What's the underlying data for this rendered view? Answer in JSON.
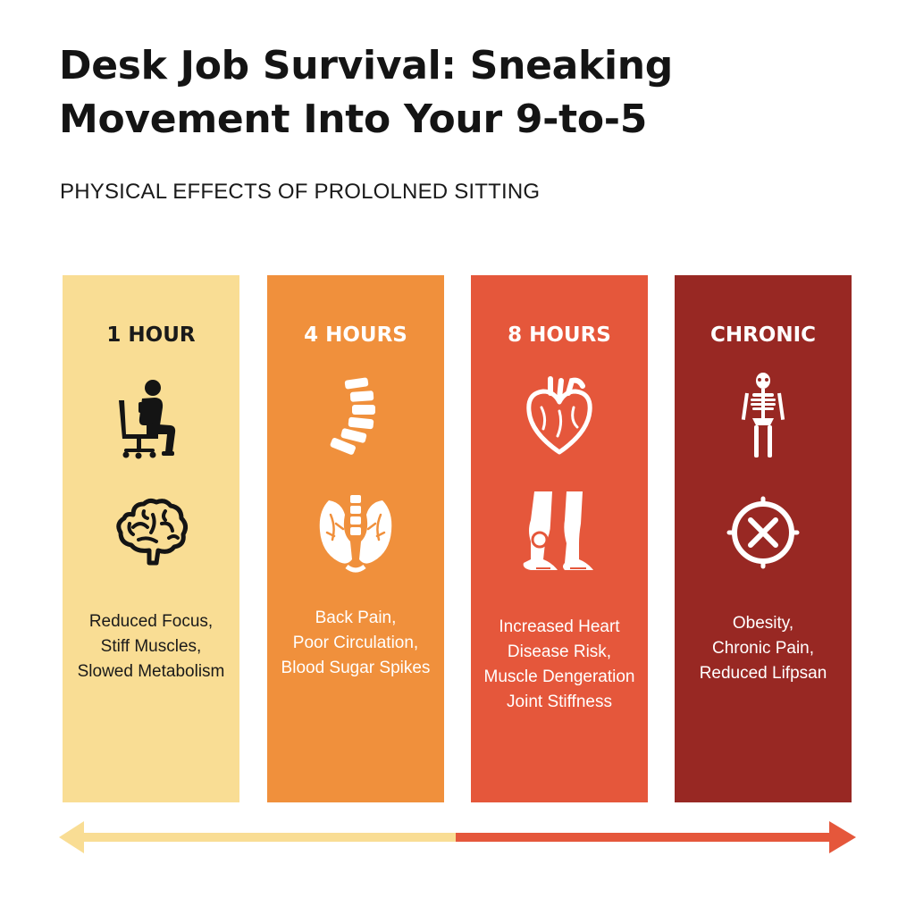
{
  "header": {
    "title": "Desk Job Survival: Sneaking Movement Into Your 9-to-5",
    "subtitle": "PHYSICAL EFFECTS OF PROLOLNED SITTING"
  },
  "colors": {
    "panel_1": "#f9dd94",
    "panel_2": "#f0903c",
    "panel_3": "#e5573b",
    "panel_4": "#982823",
    "arrow_left": "#f9dd94",
    "arrow_right": "#e5573b"
  },
  "stages": [
    {
      "label": "1 HOUR",
      "effects": "Reduced Focus,\nStiff Muscles,\nSlowed Metabolism",
      "icons": [
        "person-sitting-icon",
        "brain-icon"
      ]
    },
    {
      "label": "4 HOURS",
      "effects": "Back Pain,\nPoor Circulation,\nBlood Sugar Spikes",
      "icons": [
        "spine-icon",
        "pelvis-veins-icon"
      ]
    },
    {
      "label": "8 HOURS",
      "effects": "Increased Heart\nDisease Risk,\nMuscle Dengeration\nJoint Stiffness",
      "icons": [
        "heart-icon",
        "legs-knee-icon"
      ]
    },
    {
      "label": "CHRONIC",
      "effects": "Obesity,\nChronic Pain,\nReduced Lifpsan",
      "icons": [
        "skeleton-icon",
        "x-circle-icon"
      ]
    }
  ]
}
